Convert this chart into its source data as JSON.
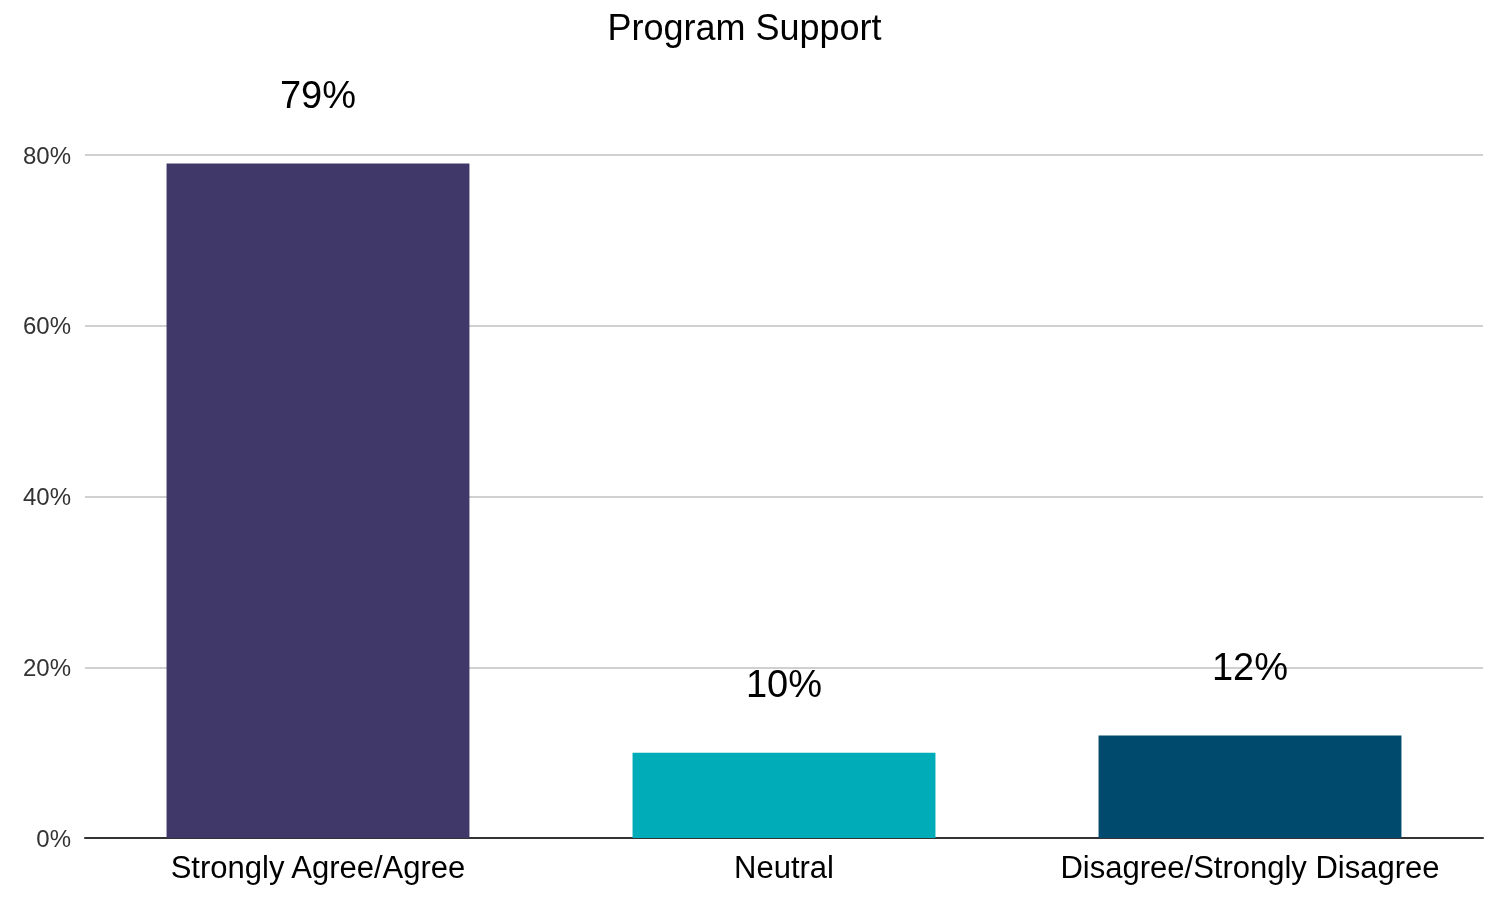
{
  "chart_data": {
    "type": "bar",
    "title": "Program Support",
    "categories": [
      "Strongly Agree/Agree",
      "Neutral",
      "Disagree/Strongly Disagree"
    ],
    "values": [
      79,
      10,
      12
    ],
    "colors": [
      "#41386a",
      "#00acb8",
      "#004a6e"
    ],
    "value_labels": [
      "79%",
      "10%",
      "12%"
    ],
    "ylim": [
      0,
      80
    ],
    "yticks": [
      {
        "value": 0,
        "label": "0%"
      },
      {
        "value": 20,
        "label": "20%"
      },
      {
        "value": 40,
        "label": "40%"
      },
      {
        "value": 60,
        "label": "60%"
      },
      {
        "value": 80,
        "label": "80%"
      }
    ],
    "grid": "y"
  }
}
